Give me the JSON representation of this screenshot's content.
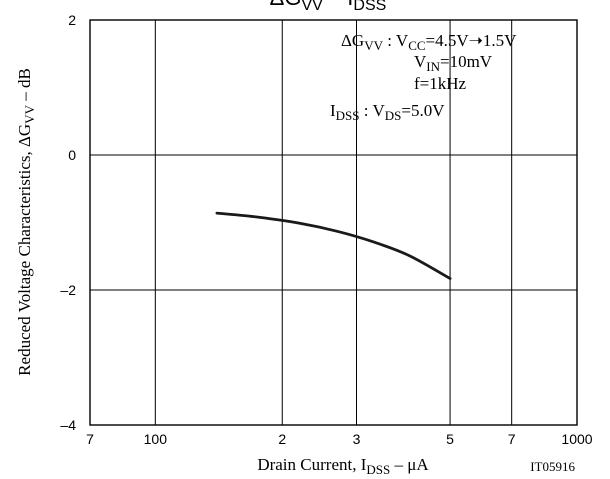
{
  "chart_data": {
    "type": "line",
    "title": {
      "base": "ΔG",
      "sub1": "VV",
      "mid": " – I",
      "sub2": "DSS"
    },
    "x_axis": {
      "scale": "log",
      "range": [
        70,
        1000
      ],
      "ticks": [
        {
          "value": 70,
          "label": "7"
        },
        {
          "value": 100,
          "label": "100"
        },
        {
          "value": 200,
          "label": "2"
        },
        {
          "value": 300,
          "label": "3"
        },
        {
          "value": 500,
          "label": "5"
        },
        {
          "value": 700,
          "label": "7"
        },
        {
          "value": 1000,
          "label": "1000"
        }
      ],
      "label": {
        "pre": "Drain Current, I",
        "sub": "DSS",
        "post": "  –  μA"
      }
    },
    "y_axis": {
      "scale": "linear",
      "range": [
        -4,
        2
      ],
      "ticks": [
        {
          "value": 2,
          "label": "2"
        },
        {
          "value": 0,
          "label": "0"
        },
        {
          "value": -2,
          "label": "–2"
        },
        {
          "value": -4,
          "label": "–4"
        }
      ],
      "label": {
        "pre": "Reduced Voltage Characteristics, ΔG",
        "sub": "VV",
        "post": "  –  dB"
      }
    },
    "grid": true,
    "series": [
      {
        "color": "#1a1a1a",
        "x": [
          140,
          175,
          220,
          270,
          330,
          400,
          500
        ],
        "y": [
          -0.86,
          -0.92,
          -1.01,
          -1.13,
          -1.29,
          -1.49,
          -1.83
        ]
      }
    ],
    "annotations": {
      "line1": {
        "a": "ΔG",
        "a_sub": "VV",
        "b": " : V",
        "b_sub": "CC",
        "c": "=4.5V➝1.5V"
      },
      "line2": {
        "a": "V",
        "a_sub": "IN",
        "b": "=10mV"
      },
      "line3": {
        "a": "f=1kHz"
      },
      "line4": {
        "a": "I",
        "a_sub": "DSS",
        "b": " : V",
        "b_sub": "DS",
        "c": "=5.0V"
      }
    },
    "code": "IT05916"
  }
}
